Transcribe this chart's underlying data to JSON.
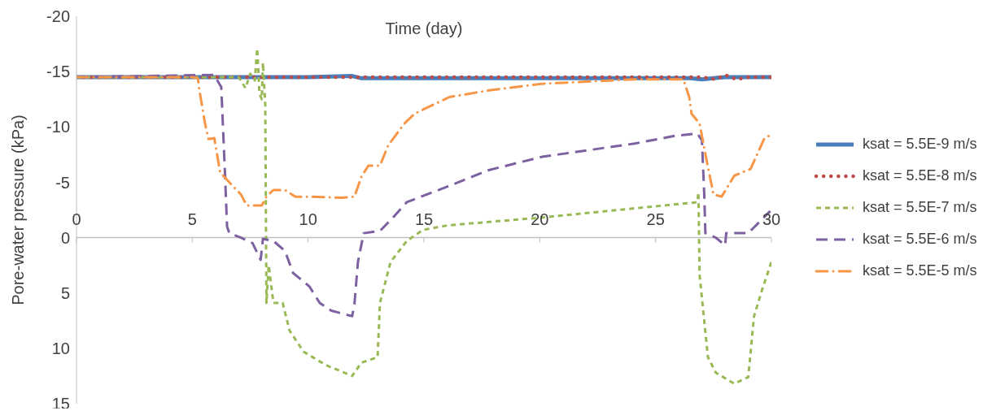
{
  "chart_data": {
    "type": "line",
    "xlabel": "Time (day)",
    "ylabel": "Pore-water pressure (kPa)",
    "xlim": [
      0,
      30
    ],
    "xticks": [
      0,
      5,
      10,
      15,
      20,
      25,
      30
    ],
    "ylim": [
      15,
      -20
    ],
    "yticks": [
      -20,
      -15,
      -10,
      -5,
      0,
      5,
      10,
      15
    ],
    "legend": "right",
    "series": [
      {
        "name": "ksat = 5.5E-9 m/s",
        "color": "#4a7ebb",
        "line_style": "solid",
        "x": [
          0,
          5,
          10,
          11.9,
          12.3,
          15,
          20,
          25,
          26.5,
          27,
          27.5,
          28,
          29,
          30
        ],
        "values": [
          -14.5,
          -14.5,
          -14.5,
          -14.6,
          -14.4,
          -14.4,
          -14.4,
          -14.4,
          -14.4,
          -14.3,
          -14.4,
          -14.5,
          -14.5,
          -14.5
        ]
      },
      {
        "name": "ksat = 5.5E-8 m/s",
        "color": "#be4b48",
        "line_style": "dotted",
        "x": [
          0,
          5,
          10,
          15,
          20,
          25,
          27,
          27.6,
          28,
          28.5,
          29,
          30
        ],
        "values": [
          -14.5,
          -14.5,
          -14.5,
          -14.5,
          -14.5,
          -14.5,
          -14.5,
          -14.3,
          -14.7,
          -14.3,
          -14.5,
          -14.5
        ]
      },
      {
        "name": "ksat = 5.5E-7 m/s",
        "color": "#98b954",
        "line_style": "dashed",
        "x": [
          0,
          5,
          7,
          7.3,
          7.5,
          7.7,
          7.8,
          7.9,
          8.0,
          8.05,
          8.15,
          8.2,
          8.3,
          8.5,
          8.9,
          9.2,
          9.8,
          10.75,
          11.9,
          12.3,
          13.0,
          13.1,
          13.56,
          14.26,
          14.96,
          16.0,
          20.0,
          26.8,
          26.85,
          26.9,
          27.26,
          27.6,
          28.4,
          29.0,
          29.25,
          29.6,
          30.0
        ],
        "values": [
          -14.5,
          -14.5,
          -14.5,
          -13.5,
          -14.8,
          -14.2,
          -17.1,
          -13,
          -12.5,
          -15.8,
          -12,
          5.9,
          2.5,
          5.9,
          5.9,
          8.4,
          10.3,
          11.5,
          12.5,
          11.3,
          10.8,
          5.9,
          2.2,
          0.3,
          -0.7,
          -1.1,
          -1.8,
          -3.2,
          -4.1,
          3.4,
          10.8,
          12.2,
          13.2,
          12.6,
          7.1,
          4.7,
          2.2
        ]
      },
      {
        "name": "ksat = 5.5E-6 m/s",
        "color": "#7d60a0",
        "line_style": "longdash",
        "x": [
          0,
          5.94,
          6.25,
          6.4,
          6.5,
          6.6,
          7.1,
          7.6,
          7.95,
          8.05,
          8.5,
          9.0,
          9.35,
          10.05,
          10.5,
          11.0,
          11.9,
          12.0,
          12.15,
          12.4,
          13.1,
          13.7,
          14.26,
          16.0,
          17.8,
          20.1,
          24.1,
          25.85,
          26.8,
          27.0,
          27.1,
          27.15,
          27.6,
          28.0,
          28.05,
          29.0,
          29.95
        ],
        "values": [
          -14.5,
          -14.7,
          -13.6,
          -6.3,
          -1.0,
          -0.4,
          0,
          0.5,
          2.0,
          0.1,
          0.3,
          1.2,
          3.2,
          4.4,
          5.9,
          6.6,
          7.1,
          6.0,
          2.2,
          -0.4,
          -0.6,
          -1.9,
          -3.2,
          -4.6,
          -6.1,
          -7.3,
          -8.5,
          -9.2,
          -9.4,
          -8.8,
          -3.9,
          -0.4,
          0,
          0.7,
          -0.4,
          -0.4,
          -2.4
        ]
      },
      {
        "name": "ksat = 5.5E-5 m/s",
        "color": "#f79646",
        "line_style": "dashdot",
        "x": [
          0,
          5.0,
          5.24,
          5.3,
          5.55,
          5.7,
          5.95,
          6.2,
          6.55,
          7.1,
          7.35,
          8.0,
          8.2,
          8.5,
          9.0,
          9.45,
          10.2,
          11.45,
          12.0,
          12.3,
          12.6,
          13.1,
          13.45,
          14.15,
          14.6,
          16.1,
          17.8,
          20.1,
          24.1,
          26.2,
          26.45,
          26.55,
          26.9,
          27.2,
          27.5,
          27.85,
          28.4,
          29.1,
          29.7,
          30.0
        ],
        "values": [
          -14.5,
          -14.5,
          -14.4,
          -13.4,
          -10.3,
          -8.9,
          -9.0,
          -5.9,
          -5.1,
          -3.9,
          -2.9,
          -2.9,
          -3.7,
          -4.3,
          -4.3,
          -3.7,
          -3.7,
          -3.6,
          -3.7,
          -5.5,
          -6.5,
          -6.5,
          -8.3,
          -10.3,
          -11.2,
          -12.7,
          -13.3,
          -13.9,
          -14.3,
          -14.3,
          -12.7,
          -11.2,
          -10.3,
          -7.0,
          -3.9,
          -3.7,
          -5.6,
          -6.2,
          -9.0,
          -9.3
        ]
      }
    ]
  }
}
